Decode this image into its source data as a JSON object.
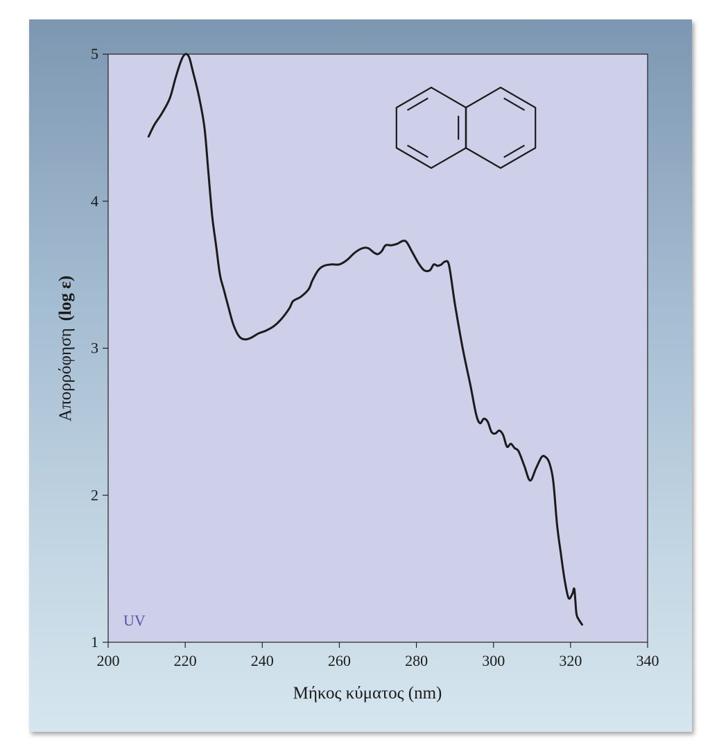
{
  "chart_data": {
    "type": "line",
    "title": "",
    "xlabel": "Μήκος κύματος (nm)",
    "ylabel_main": "Απορρόφηση",
    "ylabel_paren": "(log ε)",
    "xlim": [
      200,
      340
    ],
    "ylim": [
      1,
      5
    ],
    "xticks": [
      200,
      220,
      240,
      260,
      280,
      300,
      320,
      340
    ],
    "yticks": [
      1,
      2,
      3,
      4,
      5
    ],
    "region_label": "UV",
    "grid": false,
    "inset": "naphthalene structure, top-right",
    "series": [
      {
        "points": [
          [
            210.5,
            4.44
          ],
          [
            212,
            4.52
          ],
          [
            214,
            4.6
          ],
          [
            216,
            4.7
          ],
          [
            217.5,
            4.84
          ],
          [
            219,
            4.96
          ],
          [
            220,
            5.0
          ],
          [
            221,
            4.98
          ],
          [
            222,
            4.88
          ],
          [
            223.5,
            4.72
          ],
          [
            225,
            4.5
          ],
          [
            226,
            4.2
          ],
          [
            227,
            3.9
          ],
          [
            228,
            3.7
          ],
          [
            229,
            3.5
          ],
          [
            230,
            3.4
          ],
          [
            231,
            3.3
          ],
          [
            232.5,
            3.16
          ],
          [
            234,
            3.08
          ],
          [
            235.5,
            3.06
          ],
          [
            237,
            3.07
          ],
          [
            239,
            3.1
          ],
          [
            241,
            3.12
          ],
          [
            243,
            3.15
          ],
          [
            245,
            3.2
          ],
          [
            247,
            3.27
          ],
          [
            248,
            3.32
          ],
          [
            250,
            3.35
          ],
          [
            252,
            3.4
          ],
          [
            253,
            3.46
          ],
          [
            254.5,
            3.53
          ],
          [
            256,
            3.56
          ],
          [
            258,
            3.57
          ],
          [
            260,
            3.57
          ],
          [
            262,
            3.6
          ],
          [
            264,
            3.65
          ],
          [
            266,
            3.68
          ],
          [
            267.5,
            3.68
          ],
          [
            269,
            3.65
          ],
          [
            270,
            3.64
          ],
          [
            271,
            3.66
          ],
          [
            272,
            3.7
          ],
          [
            273.5,
            3.7
          ],
          [
            275,
            3.71
          ],
          [
            276.5,
            3.73
          ],
          [
            277.5,
            3.72
          ],
          [
            279,
            3.65
          ],
          [
            280.5,
            3.58
          ],
          [
            282,
            3.53
          ],
          [
            283.5,
            3.53
          ],
          [
            284.5,
            3.57
          ],
          [
            285.5,
            3.56
          ],
          [
            286.5,
            3.57
          ],
          [
            287.5,
            3.59
          ],
          [
            288.5,
            3.56
          ],
          [
            290,
            3.3
          ],
          [
            292,
            3.0
          ],
          [
            294,
            2.75
          ],
          [
            295.5,
            2.55
          ],
          [
            296.5,
            2.49
          ],
          [
            297.5,
            2.52
          ],
          [
            298.5,
            2.5
          ],
          [
            299.5,
            2.43
          ],
          [
            300.5,
            2.42
          ],
          [
            301.5,
            2.44
          ],
          [
            302.5,
            2.41
          ],
          [
            303.5,
            2.33
          ],
          [
            304.5,
            2.35
          ],
          [
            305.5,
            2.32
          ],
          [
            306.5,
            2.3
          ],
          [
            308,
            2.2
          ],
          [
            309.5,
            2.1
          ],
          [
            311,
            2.18
          ],
          [
            312.5,
            2.26
          ],
          [
            313.5,
            2.26
          ],
          [
            314.5,
            2.22
          ],
          [
            315.5,
            2.1
          ],
          [
            316.5,
            1.8
          ],
          [
            317.5,
            1.6
          ],
          [
            318.5,
            1.42
          ],
          [
            319.5,
            1.3
          ],
          [
            320.5,
            1.33
          ],
          [
            321,
            1.36
          ],
          [
            321.5,
            1.2
          ],
          [
            322,
            1.16
          ],
          [
            323,
            1.12
          ]
        ]
      }
    ]
  }
}
